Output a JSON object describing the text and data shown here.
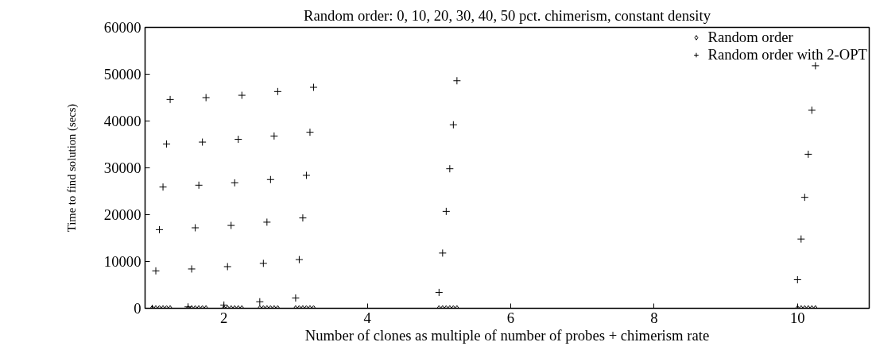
{
  "chart_data": {
    "type": "scatter",
    "title": "Random order: 0, 10, 20, 30, 40, 50 pct. chimerism, constant density",
    "xlabel": "Number of clones as multiple of number of probes + chimerism rate",
    "ylabel": "Time to find solution (secs)",
    "xlim": [
      0.9,
      11
    ],
    "ylim": [
      0,
      60000
    ],
    "xticks": [
      2,
      4,
      6,
      8,
      10
    ],
    "yticks": [
      0,
      10000,
      20000,
      30000,
      40000,
      50000,
      60000
    ],
    "grid": false,
    "legend": "top right",
    "series": [
      {
        "name": "Random order",
        "color": "#000000",
        "marker": "diamond",
        "x": [
          1.0,
          1.05,
          1.1,
          1.15,
          1.2,
          1.25,
          1.5,
          1.55,
          1.6,
          1.65,
          1.7,
          1.75,
          2.0,
          2.05,
          2.1,
          2.15,
          2.2,
          2.25,
          2.5,
          2.55,
          2.6,
          2.65,
          2.7,
          2.75,
          3.0,
          3.05,
          3.1,
          3.15,
          3.2,
          3.25,
          5.0,
          5.05,
          5.1,
          5.15,
          5.2,
          5.25,
          10.0,
          10.05,
          10.1,
          10.15,
          10.2,
          10.25
        ],
        "values": [
          0,
          0,
          0,
          0,
          0,
          0,
          0,
          0,
          0,
          0,
          0,
          0,
          0,
          0,
          0,
          0,
          0,
          0,
          0,
          0,
          0,
          0,
          0,
          0,
          0,
          0,
          0,
          0,
          0,
          0,
          0,
          0,
          0,
          0,
          0,
          0,
          0,
          0,
          0,
          0,
          0,
          0
        ]
      },
      {
        "name": "Random order with 2-OPT",
        "color": "#000000",
        "marker": "cross",
        "x": [
          1.0,
          1.05,
          1.1,
          1.15,
          1.2,
          1.25,
          1.5,
          1.55,
          1.6,
          1.65,
          1.7,
          1.75,
          2.0,
          2.05,
          2.1,
          2.15,
          2.2,
          2.25,
          2.5,
          2.55,
          2.6,
          2.65,
          2.7,
          2.75,
          3.0,
          3.05,
          3.1,
          3.15,
          3.2,
          3.25,
          5.0,
          5.05,
          5.1,
          5.15,
          5.2,
          5.25,
          10.0,
          10.05,
          10.1,
          10.15,
          10.2,
          10.25
        ],
        "values": [
          0,
          8000,
          16800,
          25900,
          35100,
          44600,
          300,
          8400,
          17200,
          26300,
          35500,
          45000,
          700,
          8900,
          17700,
          26800,
          36100,
          45500,
          1400,
          9600,
          18400,
          27500,
          36800,
          46300,
          2200,
          10400,
          19300,
          28400,
          37600,
          47200,
          3400,
          11800,
          20700,
          29800,
          39200,
          48600,
          6100,
          14800,
          23700,
          32900,
          42300,
          51800
        ]
      }
    ]
  }
}
